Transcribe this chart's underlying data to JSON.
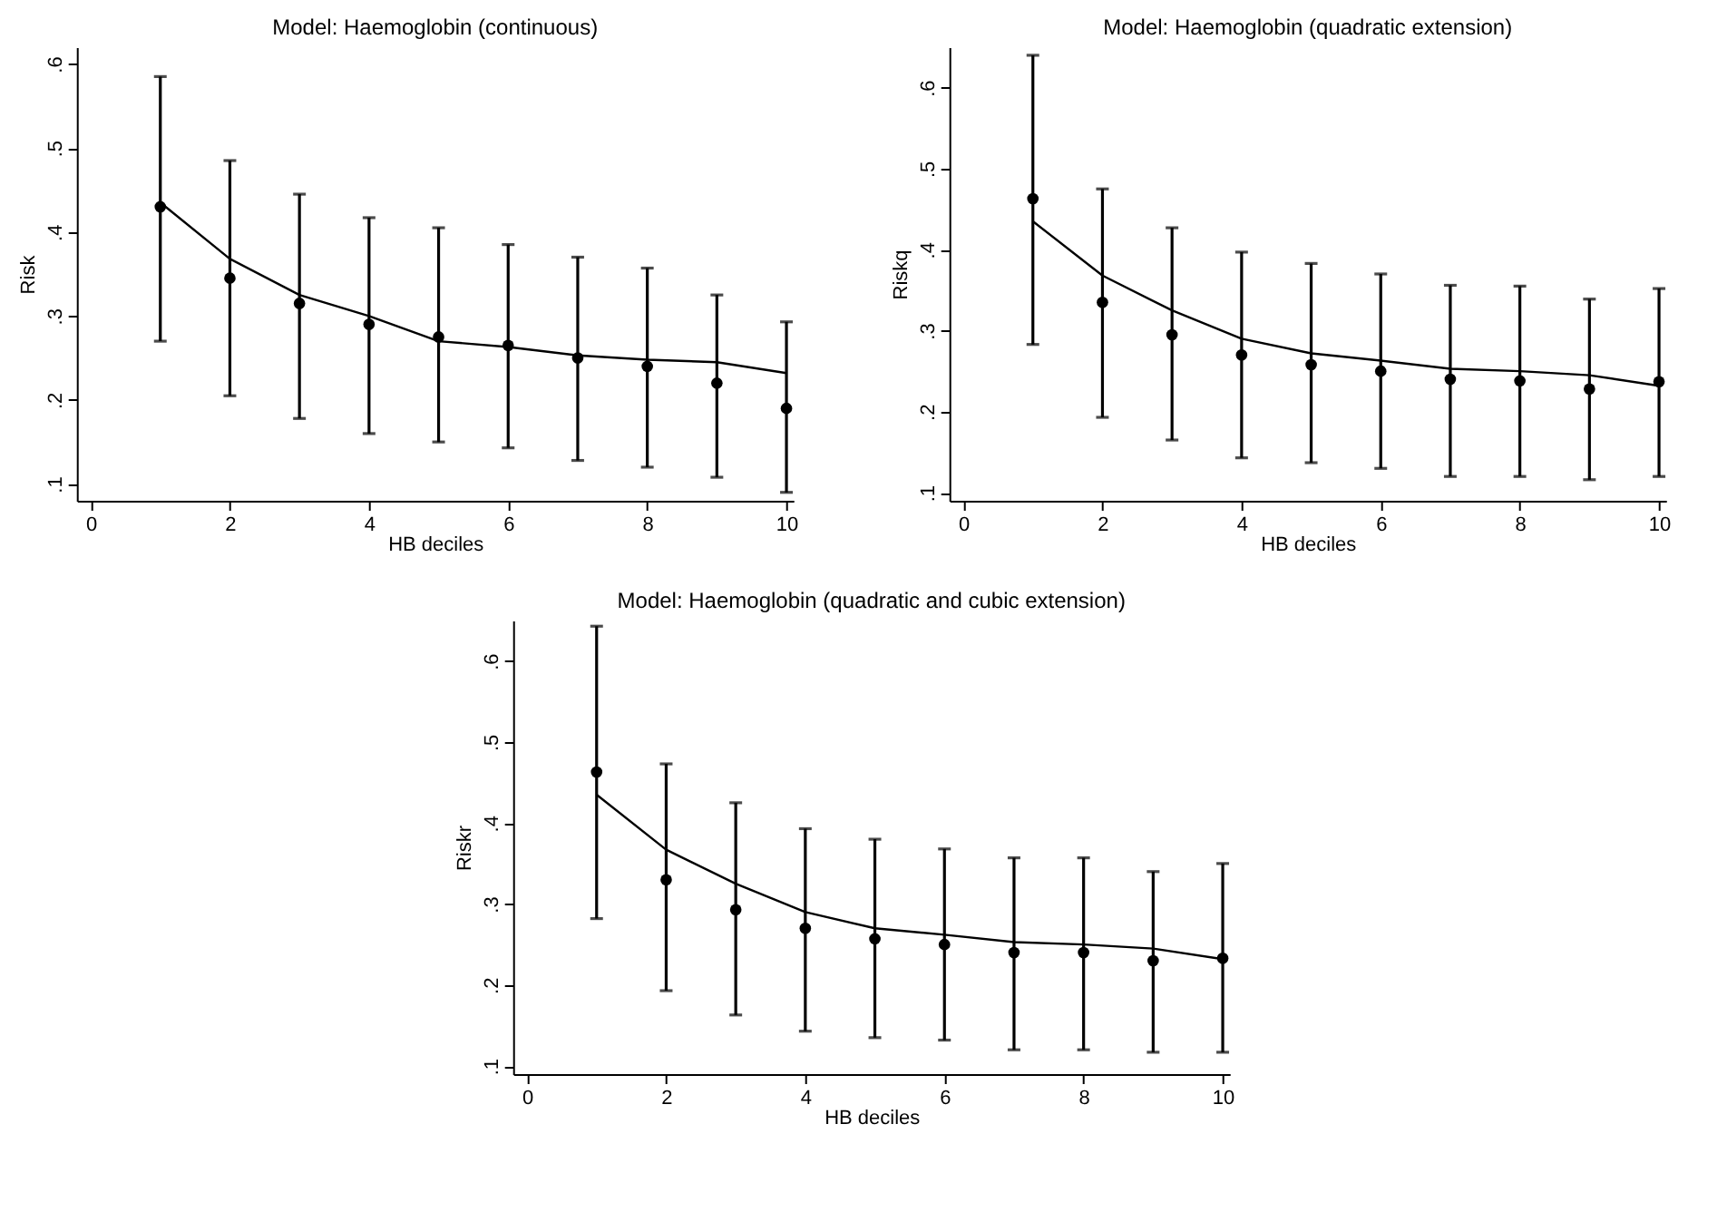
{
  "chart_data": [
    {
      "type": "scatter",
      "title": "Model: Haemoglobin (continuous)",
      "xlabel": "HB deciles",
      "ylabel": "Risk",
      "x": [
        1,
        2,
        3,
        4,
        5,
        6,
        7,
        8,
        9,
        10
      ],
      "xlim": [
        -0.2,
        10.1
      ],
      "xticks": [
        0,
        2,
        4,
        6,
        8,
        10
      ],
      "ylim": [
        0.08,
        0.62
      ],
      "yticks": [
        {
          "value": 0.1,
          "label": ".1"
        },
        {
          "value": 0.2,
          "label": ".2"
        },
        {
          "value": 0.3,
          "label": ".3"
        },
        {
          "value": 0.4,
          "label": ".4"
        },
        {
          "value": 0.5,
          "label": ".5"
        },
        {
          "value": 0.6,
          "label": ".6"
        }
      ],
      "grid": false,
      "series": [
        {
          "marker": "circle",
          "color": "#000000",
          "values": [
            0.43,
            0.345,
            0.315,
            0.29,
            0.275,
            0.265,
            0.25,
            0.24,
            0.22,
            0.19
          ],
          "errors": [
            [
              0.27,
              0.585
            ],
            [
              0.205,
              0.485
            ],
            [
              0.178,
              0.445
            ],
            [
              0.16,
              0.417
            ],
            [
              0.15,
              0.405
            ],
            [
              0.143,
              0.385
            ],
            [
              0.128,
              0.37
            ],
            [
              0.12,
              0.357
            ],
            [
              0.108,
              0.325
            ],
            [
              0.09,
              0.293
            ]
          ]
        },
        {
          "type": "line",
          "color": "#000000",
          "values": [
            0.435,
            0.368,
            0.325,
            0.3,
            0.27,
            0.263,
            0.253,
            0.248,
            0.245,
            0.232
          ]
        }
      ]
    },
    {
      "type": "scatter",
      "title": "Model: Haemoglobin (quadratic extension)",
      "xlabel": "HB  deciles",
      "ylabel": "Riskq",
      "x": [
        1,
        2,
        3,
        4,
        5,
        6,
        7,
        8,
        9,
        10
      ],
      "xlim": [
        -0.2,
        10.1
      ],
      "xticks": [
        0,
        2,
        4,
        6,
        8,
        10
      ],
      "ylim": [
        0.09,
        0.65
      ],
      "yticks": [
        {
          "value": 0.1,
          "label": ".1"
        },
        {
          "value": 0.2,
          "label": ".2"
        },
        {
          "value": 0.3,
          "label": ".3"
        },
        {
          "value": 0.4,
          "label": ".4"
        },
        {
          "value": 0.5,
          "label": ".5"
        },
        {
          "value": 0.6,
          "label": ".6"
        }
      ],
      "grid": false,
      "series": [
        {
          "marker": "circle",
          "color": "#000000",
          "values": [
            0.463,
            0.335,
            0.295,
            0.27,
            0.258,
            0.25,
            0.24,
            0.238,
            0.228,
            0.237
          ],
          "errors": [
            [
              0.283,
              0.64
            ],
            [
              0.193,
              0.475
            ],
            [
              0.165,
              0.427
            ],
            [
              0.143,
              0.397
            ],
            [
              0.137,
              0.383
            ],
            [
              0.13,
              0.37
            ],
            [
              0.12,
              0.356
            ],
            [
              0.12,
              0.355
            ],
            [
              0.116,
              0.339
            ],
            [
              0.12,
              0.352
            ]
          ]
        },
        {
          "type": "line",
          "color": "#000000",
          "values": [
            0.435,
            0.368,
            0.325,
            0.29,
            0.272,
            0.263,
            0.253,
            0.25,
            0.245,
            0.232
          ]
        }
      ]
    },
    {
      "type": "scatter",
      "title": "Model: Haemoglobin (quadratic and cubic extension)",
      "xlabel": "HB deciles",
      "ylabel": "Riskr",
      "x": [
        1,
        2,
        3,
        4,
        5,
        6,
        7,
        8,
        9,
        10
      ],
      "xlim": [
        -0.2,
        10.1
      ],
      "xticks": [
        0,
        2,
        4,
        6,
        8,
        10
      ],
      "ylim": [
        0.09,
        0.65
      ],
      "yticks": [
        {
          "value": 0.1,
          "label": ".1"
        },
        {
          "value": 0.2,
          "label": ".2"
        },
        {
          "value": 0.3,
          "label": ".3"
        },
        {
          "value": 0.4,
          "label": ".4"
        },
        {
          "value": 0.5,
          "label": ".5"
        },
        {
          "value": 0.6,
          "label": ".6"
        }
      ],
      "grid": false,
      "series": [
        {
          "marker": "circle",
          "color": "#000000",
          "values": [
            0.463,
            0.33,
            0.293,
            0.27,
            0.257,
            0.25,
            0.24,
            0.24,
            0.23,
            0.233
          ],
          "errors": [
            [
              0.282,
              0.643
            ],
            [
              0.193,
              0.473
            ],
            [
              0.163,
              0.425
            ],
            [
              0.143,
              0.393
            ],
            [
              0.135,
              0.38
            ],
            [
              0.132,
              0.368
            ],
            [
              0.12,
              0.357
            ],
            [
              0.12,
              0.357
            ],
            [
              0.117,
              0.34
            ],
            [
              0.117,
              0.35
            ]
          ]
        },
        {
          "type": "line",
          "color": "#000000",
          "values": [
            0.435,
            0.367,
            0.325,
            0.29,
            0.27,
            0.262,
            0.253,
            0.25,
            0.245,
            0.232
          ]
        }
      ]
    }
  ]
}
